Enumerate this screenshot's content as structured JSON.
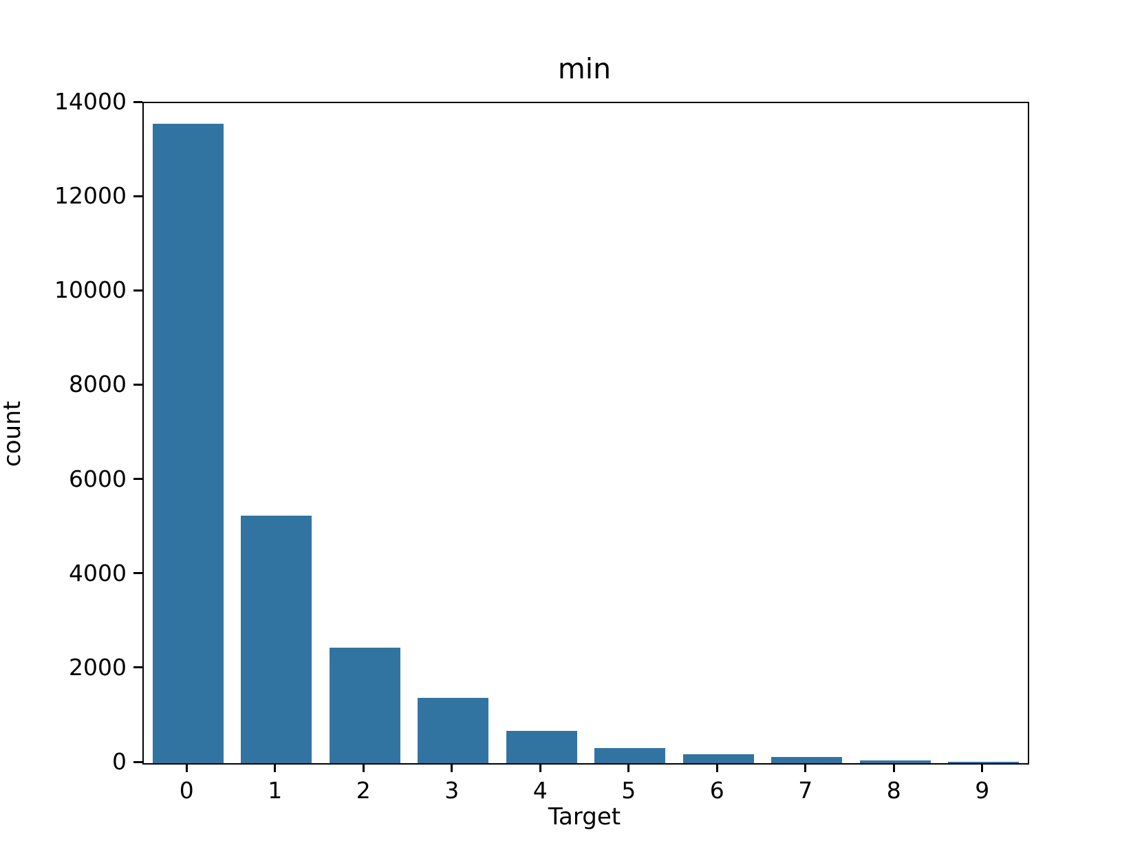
{
  "chart_data": {
    "type": "bar",
    "title": "min",
    "xlabel": "Target",
    "ylabel": "count",
    "categories": [
      "0",
      "1",
      "2",
      "3",
      "4",
      "5",
      "6",
      "7",
      "8",
      "9"
    ],
    "values": [
      13560,
      5250,
      2450,
      1385,
      690,
      320,
      190,
      130,
      55,
      25
    ],
    "ylim": [
      0,
      14000
    ],
    "yticks": [
      0,
      2000,
      4000,
      6000,
      8000,
      10000,
      12000,
      14000
    ],
    "bar_color": "#3274a1",
    "bar_width_fraction": 0.8,
    "spine_color": "#000000",
    "grid": false,
    "legend_position": "none"
  }
}
